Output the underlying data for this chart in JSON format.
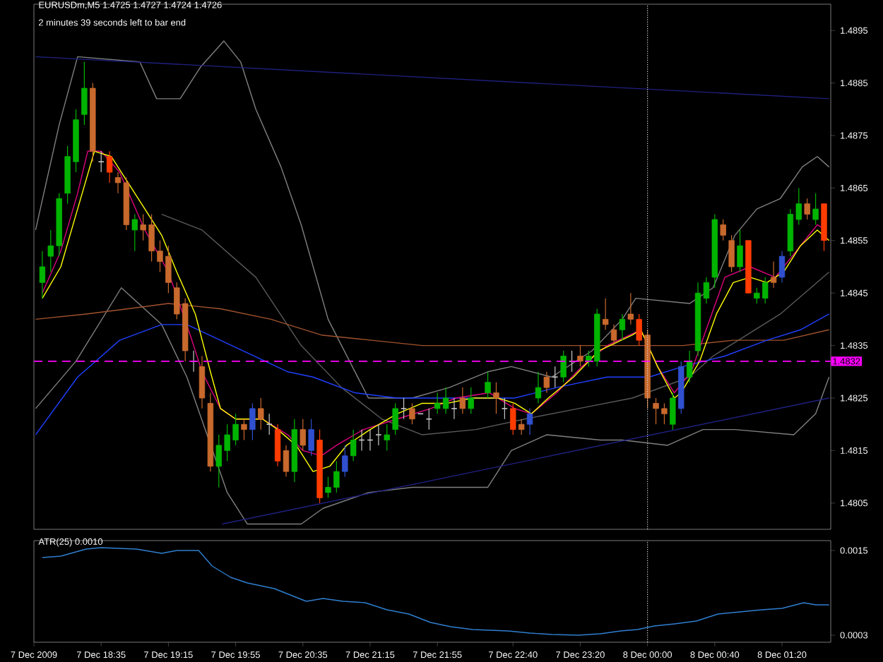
{
  "chart_data": [
    {
      "type": "candlestick",
      "title": "EURUSDm,M5  1.4725 1.4727 1.4724 1.4726",
      "subtitle": "2 minutes 39 seconds left to bar end",
      "x": [
        "2009-12-07T18:00",
        "2009-12-07T18:05",
        "2009-12-07T18:10",
        "2009-12-07T18:15",
        "2009-12-07T18:20",
        "2009-12-07T18:25",
        "2009-12-07T18:30",
        "2009-12-07T18:35",
        "2009-12-07T18:40",
        "2009-12-07T18:45",
        "2009-12-07T18:50",
        "2009-12-07T18:55",
        "2009-12-07T19:00",
        "2009-12-07T19:05",
        "2009-12-07T19:10",
        "2009-12-07T19:15",
        "2009-12-07T19:20",
        "2009-12-07T19:25",
        "2009-12-07T19:30",
        "2009-12-07T19:35",
        "2009-12-07T19:40",
        "2009-12-07T19:45",
        "2009-12-07T19:50",
        "2009-12-07T19:55",
        "2009-12-07T20:00",
        "2009-12-07T20:05",
        "2009-12-07T20:10",
        "2009-12-07T20:15",
        "2009-12-07T20:20",
        "2009-12-07T20:25",
        "2009-12-07T20:30",
        "2009-12-07T20:35",
        "2009-12-07T20:40",
        "2009-12-07T20:45",
        "2009-12-07T20:50",
        "2009-12-07T20:55",
        "2009-12-07T21:00",
        "2009-12-07T21:05",
        "2009-12-07T21:10",
        "2009-12-07T21:15",
        "2009-12-07T21:20",
        "2009-12-07T21:25",
        "2009-12-07T21:30",
        "2009-12-07T21:35",
        "2009-12-07T21:40",
        "2009-12-07T21:45",
        "2009-12-07T21:50",
        "2009-12-07T21:55",
        "2009-12-07T22:00",
        "2009-12-07T22:05",
        "2009-12-07T22:10",
        "2009-12-07T22:15",
        "2009-12-07T22:25",
        "2009-12-07T22:30",
        "2009-12-07T22:35",
        "2009-12-07T22:40",
        "2009-12-07T22:45",
        "2009-12-07T22:50",
        "2009-12-07T22:55",
        "2009-12-07T23:00",
        "2009-12-07T23:05",
        "2009-12-07T23:10",
        "2009-12-07T23:15",
        "2009-12-07T23:20",
        "2009-12-07T23:25",
        "2009-12-07T23:30",
        "2009-12-07T23:35",
        "2009-12-07T23:40",
        "2009-12-07T23:45",
        "2009-12-07T23:50",
        "2009-12-07T23:55",
        "2009-12-08T00:00",
        "2009-12-08T00:05",
        "2009-12-08T00:10",
        "2009-12-08T00:15",
        "2009-12-08T00:20",
        "2009-12-08T00:25",
        "2009-12-08T00:30",
        "2009-12-08T00:35",
        "2009-12-08T00:40",
        "2009-12-08T00:45",
        "2009-12-08T00:50",
        "2009-12-08T00:55",
        "2009-12-08T01:00",
        "2009-12-08T01:05",
        "2009-12-08T01:10",
        "2009-12-08T01:15",
        "2009-12-08T01:20",
        "2009-12-08T01:25",
        "2009-12-08T01:30",
        "2009-12-08T01:35",
        "2009-12-08T01:40",
        "2009-12-08T01:45"
      ],
      "ohlc": [
        [
          1.4847,
          1.4853,
          1.4844,
          1.485
        ],
        [
          1.4852,
          1.4857,
          1.4849,
          1.4854
        ],
        [
          1.4854,
          1.4864,
          1.4852,
          1.4863
        ],
        [
          1.4864,
          1.4873,
          1.4862,
          1.4871
        ],
        [
          1.487,
          1.488,
          1.4868,
          1.4878
        ],
        [
          1.4879,
          1.4889,
          1.4877,
          1.4884
        ],
        [
          1.4884,
          1.4885,
          1.487,
          1.4872
        ],
        [
          1.487,
          1.4872,
          1.4868,
          1.487
        ],
        [
          1.4871,
          1.4872,
          1.4866,
          1.4868
        ],
        [
          1.4867,
          1.4868,
          1.4864,
          1.4866
        ],
        [
          1.4866,
          1.4867,
          1.4857,
          1.4858
        ],
        [
          1.4857,
          1.486,
          1.4853,
          1.4859
        ],
        [
          1.4858,
          1.486,
          1.4855,
          1.4857
        ],
        [
          1.4858,
          1.486,
          1.4851,
          1.4853
        ],
        [
          1.4853,
          1.4855,
          1.4849,
          1.4851
        ],
        [
          1.4852,
          1.4854,
          1.4845,
          1.4847
        ],
        [
          1.4846,
          1.4847,
          1.484,
          1.4841
        ],
        [
          1.4843,
          1.4844,
          1.4832,
          1.4834
        ],
        [
          1.4832,
          1.4834,
          1.483,
          1.4832
        ],
        [
          1.4831,
          1.4833,
          1.4823,
          1.4825
        ],
        [
          1.4824,
          1.4826,
          1.4811,
          1.4812
        ],
        [
          1.4812,
          1.4818,
          1.4808,
          1.4816
        ],
        [
          1.4815,
          1.482,
          1.4813,
          1.4818
        ],
        [
          1.4817,
          1.4822,
          1.4816,
          1.482
        ],
        [
          1.482,
          1.4821,
          1.4817,
          1.4819
        ],
        [
          1.4819,
          1.4824,
          1.4817,
          1.4823
        ],
        [
          1.4823,
          1.4825,
          1.4819,
          1.4821
        ],
        [
          1.482,
          1.4822,
          1.4818,
          1.482
        ],
        [
          1.4819,
          1.482,
          1.4812,
          1.4813
        ],
        [
          1.4815,
          1.4816,
          1.481,
          1.4811
        ],
        [
          1.4811,
          1.4821,
          1.4809,
          1.4819
        ],
        [
          1.4819,
          1.4821,
          1.4815,
          1.4816
        ],
        [
          1.4815,
          1.4821,
          1.4814,
          1.4819
        ],
        [
          1.4817,
          1.4819,
          1.4805,
          1.4806
        ],
        [
          1.4807,
          1.481,
          1.4806,
          1.4808
        ],
        [
          1.4808,
          1.4813,
          1.4807,
          1.4811
        ],
        [
          1.4811,
          1.4816,
          1.481,
          1.4814
        ],
        [
          1.4814,
          1.4819,
          1.4813,
          1.4817
        ],
        [
          1.4817,
          1.4819,
          1.4815,
          1.4817
        ],
        [
          1.4817,
          1.4819,
          1.4815,
          1.4817
        ],
        [
          1.4818,
          1.482,
          1.4816,
          1.4818
        ],
        [
          1.4817,
          1.482,
          1.4815,
          1.4818
        ],
        [
          1.4819,
          1.4824,
          1.4818,
          1.4823
        ],
        [
          1.4823,
          1.4825,
          1.4821,
          1.4823
        ],
        [
          1.4823,
          1.4824,
          1.482,
          1.4821
        ],
        [
          1.4822,
          1.4822,
          1.4822,
          1.4822
        ],
        [
          1.4821,
          1.4823,
          1.4819,
          1.4821
        ],
        [
          1.4823,
          1.4826,
          1.4822,
          1.4824
        ],
        [
          1.4823,
          1.4827,
          1.4822,
          1.4825
        ],
        [
          1.4823,
          1.4825,
          1.4821,
          1.4823
        ],
        [
          1.4825,
          1.4827,
          1.4822,
          1.4823
        ],
        [
          1.4823,
          1.4827,
          1.4822,
          1.4825
        ],
        [
          1.4826,
          1.483,
          1.4825,
          1.4828
        ],
        [
          1.4826,
          1.4828,
          1.4822,
          1.4825
        ],
        [
          1.4823,
          1.4825,
          1.4821,
          1.4823
        ],
        [
          1.4823,
          1.4824,
          1.4818,
          1.4819
        ],
        [
          1.482,
          1.4821,
          1.4818,
          1.4819
        ],
        [
          1.482,
          1.4823,
          1.4818,
          1.4822
        ],
        [
          1.4825,
          1.483,
          1.4824,
          1.4827
        ],
        [
          1.4829,
          1.483,
          1.4826,
          1.4827
        ],
        [
          1.4829,
          1.4831,
          1.4827,
          1.4829
        ],
        [
          1.4829,
          1.4834,
          1.4828,
          1.4833
        ],
        [
          1.4832,
          1.4834,
          1.483,
          1.4832
        ],
        [
          1.4833,
          1.4835,
          1.4831,
          1.4832
        ],
        [
          1.4832,
          1.4834,
          1.4831,
          1.4833
        ],
        [
          1.4832,
          1.4842,
          1.4831,
          1.4841
        ],
        [
          1.484,
          1.4844,
          1.4838,
          1.4839
        ],
        [
          1.4838,
          1.4839,
          1.4835,
          1.4836
        ],
        [
          1.4838,
          1.4841,
          1.4836,
          1.484
        ],
        [
          1.4841,
          1.4845,
          1.4839,
          1.484
        ],
        [
          1.484,
          1.4841,
          1.4835,
          1.4836
        ],
        [
          1.4837,
          1.4838,
          1.4823,
          1.4825
        ],
        [
          1.4824,
          1.4825,
          1.482,
          1.4823
        ],
        [
          1.4823,
          1.4824,
          1.482,
          1.4822
        ],
        [
          1.482,
          1.4826,
          1.4819,
          1.4825
        ],
        [
          1.4823,
          1.4832,
          1.4822,
          1.4831
        ],
        [
          1.4829,
          1.4834,
          1.4828,
          1.4832
        ],
        [
          1.4834,
          1.4847,
          1.4833,
          1.4845
        ],
        [
          1.4844,
          1.4848,
          1.4843,
          1.4847
        ],
        [
          1.4848,
          1.486,
          1.4846,
          1.4859
        ],
        [
          1.4858,
          1.4859,
          1.4855,
          1.4856
        ],
        [
          1.4855,
          1.4856,
          1.4849,
          1.485
        ],
        [
          1.485,
          1.4857,
          1.4849,
          1.4854
        ],
        [
          1.4855,
          1.4855,
          1.4845,
          1.4845
        ],
        [
          1.4844,
          1.4846,
          1.4843,
          1.4845
        ],
        [
          1.4844,
          1.4848,
          1.4843,
          1.4847
        ],
        [
          1.4848,
          1.4851,
          1.4846,
          1.4847
        ],
        [
          1.4848,
          1.4853,
          1.4847,
          1.4852
        ],
        [
          1.4853,
          1.4861,
          1.4852,
          1.486
        ],
        [
          1.4859,
          1.4865,
          1.4858,
          1.4862
        ],
        [
          1.4862,
          1.4863,
          1.4859,
          1.486
        ],
        [
          1.4859,
          1.4864,
          1.4858,
          1.4861
        ],
        [
          1.4862,
          1.4862,
          1.4853,
          1.4855
        ]
      ],
      "colors": [
        "#00b400",
        "#00b400",
        "#00b400",
        "#00b400",
        "#00b400",
        "#00b400",
        "#c8692d",
        "#c8c8c8",
        "#ff3c00",
        "#c8692d",
        "#c8692d",
        "#00b400",
        "#c8692d",
        "#c8692d",
        "#c8692d",
        "#c8692d",
        "#c8692d",
        "#c8692d",
        "#c8c8c8",
        "#c8692d",
        "#c8692d",
        "#00b400",
        "#00b400",
        "#00b400",
        "#c8692d",
        "#3050d0",
        "#c8692d",
        "#c8c8c8",
        "#ff3c00",
        "#c8692d",
        "#00b400",
        "#c8692d",
        "#3050d0",
        "#ff3c00",
        "#00b400",
        "#00b400",
        "#3050d0",
        "#00b400",
        "#c8c8c8",
        "#c8c8c8",
        "#c8c8c8",
        "#00b400",
        "#00b400",
        "#c8c8c8",
        "#c8692d",
        "#c8c8c8",
        "#c8c8c8",
        "#00b400",
        "#00b400",
        "#c8c8c8",
        "#c8692d",
        "#00b400",
        "#00b400",
        "#c8692d",
        "#c8c8c8",
        "#ff3c00",
        "#c8692d",
        "#3050d0",
        "#00b400",
        "#c8692d",
        "#c8c8c8",
        "#00b400",
        "#c8c8c8",
        "#c8692d",
        "#00b400",
        "#00b400",
        "#c8692d",
        "#c8692d",
        "#00b400",
        "#c8692d",
        "#ff3c00",
        "#c8692d",
        "#c8692d",
        "#c8692d",
        "#00b400",
        "#3050d0",
        "#00b400",
        "#00b400",
        "#00b400",
        "#00b400",
        "#c8692d",
        "#c8692d",
        "#00b400",
        "#ff3c00",
        "#00b400",
        "#00b400",
        "#c8692d",
        "#3050d0",
        "#00b400",
        "#00b400",
        "#c8692d",
        "#00b400",
        "#ff3c00"
      ],
      "series": [
        {
          "type": "line",
          "color": "#808080",
          "x": [
            "2009-12-07T17:56",
            "2009-12-07T18:10",
            "2009-12-07T18:21",
            "2009-12-07T18:30",
            "2009-12-07T18:38",
            "2009-12-07T18:47",
            "2009-12-07T18:58",
            "2009-12-07T19:08",
            "2009-12-07T19:22",
            "2009-12-07T19:34",
            "2009-12-07T19:48",
            "2009-12-07T19:58",
            "2009-12-07T20:07",
            "2009-12-07T20:22",
            "2009-12-07T20:34",
            "2009-12-07T20:50",
            "2009-12-07T21:14",
            "2009-12-07T21:40",
            "2009-12-07T22:02",
            "2009-12-07T22:25",
            "2009-12-07T22:39",
            "2009-12-07T23:03",
            "2009-12-07T23:27",
            "2009-12-07T23:45",
            "2009-12-07T23:53",
            "2009-12-08T00:25",
            "2009-12-08T00:39",
            "2009-12-08T00:52",
            "2009-12-08T01:05",
            "2009-12-08T01:19",
            "2009-12-08T01:32",
            "2009-12-08T01:41",
            "2009-12-08T01:48"
          ],
          "values": [
            1.4857,
            1.4877,
            1.489,
            null,
            null,
            null,
            1.4889,
            1.4882,
            1.4882,
            1.4888,
            1.4893,
            1.4889,
            1.488,
            1.4869,
            1.4858,
            1.484,
            1.4825,
            1.4825,
            1.4827,
            1.483,
            1.4831,
            1.4829,
            1.4834,
            1.484,
            1.4844,
            1.4843,
            1.4846,
            1.4856,
            1.4861,
            1.4863,
            1.4869,
            1.4871,
            1.4869
          ]
        },
        {
          "type": "line",
          "color": "#808080",
          "x": [
            "2009-12-07T17:56",
            "2009-12-07T18:20",
            "2009-12-07T18:47",
            "2009-12-07T19:11",
            "2009-12-07T19:26",
            "2009-12-07T19:38",
            "2009-12-07T19:50",
            "2009-12-07T20:02",
            "2009-12-07T20:34",
            "2009-12-07T20:47",
            "2009-12-07T21:14",
            "2009-12-07T21:40",
            "2009-12-07T22:25",
            "2009-12-07T22:39",
            "2009-12-07T23:00",
            "2009-12-07T23:32",
            "2009-12-07T23:45",
            "2009-12-08T00:12",
            "2009-12-08T00:33",
            "2009-12-08T00:52",
            "2009-12-08T01:27",
            "2009-12-08T01:40",
            "2009-12-08T01:48"
          ],
          "values": [
            1.4823,
            1.4832,
            1.4846,
            1.4839,
            1.4829,
            1.4818,
            1.4807,
            1.4801,
            1.4801,
            1.4804,
            1.4807,
            1.4808,
            1.4808,
            1.4815,
            1.4818,
            1.4817,
            1.4817,
            1.4816,
            1.4819,
            1.4819,
            1.4818,
            1.4822,
            1.4829
          ]
        },
        {
          "type": "line",
          "color": "#5a5a5a",
          "x": [
            "2009-12-07T19:11",
            "2009-12-07T19:35",
            "2009-12-07T20:07",
            "2009-12-07T20:34",
            "2009-12-07T20:58",
            "2009-12-07T21:22",
            "2009-12-07T21:46",
            "2009-12-07T22:18",
            "2009-12-07T22:47",
            "2009-12-07T23:19",
            "2009-12-07T23:51",
            "2009-12-08T00:25",
            "2009-12-08T00:39",
            "2009-12-08T01:19",
            "2009-12-08T01:48"
          ],
          "values": [
            1.486,
            1.4857,
            1.4848,
            1.4835,
            1.4827,
            1.4821,
            1.4818,
            1.4819,
            1.4821,
            1.4823,
            1.4825,
            1.4829,
            1.4833,
            1.4841,
            1.4849
          ]
        },
        {
          "type": "line",
          "color": "#202080",
          "x": [
            "2009-12-07T17:56",
            "2009-12-08T01:48"
          ],
          "values": [
            1.489,
            1.4882
          ]
        },
        {
          "type": "line",
          "color": "#202080",
          "x": [
            "2009-12-07T19:47",
            "2009-12-08T01:48"
          ],
          "values": [
            1.4801,
            1.4825
          ]
        },
        {
          "type": "line",
          "color": "#a0522d",
          "x": [
            "2009-12-07T17:56",
            "2009-12-07T18:26",
            "2009-12-07T18:51",
            "2009-12-07T19:15",
            "2009-12-07T19:46",
            "2009-12-07T20:16",
            "2009-12-07T20:46",
            "2009-12-07T21:16",
            "2009-12-07T21:46",
            "2009-12-07T22:16",
            "2009-12-07T22:51",
            "2009-12-07T23:21",
            "2009-12-07T23:51",
            "2009-12-08T00:21",
            "2009-12-08T00:51",
            "2009-12-08T01:21",
            "2009-12-08T01:48"
          ],
          "values": [
            1.484,
            1.4841,
            1.4842,
            1.4843,
            1.4842,
            1.484,
            1.4837,
            1.4836,
            1.4835,
            1.4835,
            1.4835,
            1.4835,
            1.4835,
            1.4835,
            1.4836,
            1.4836,
            1.4838
          ]
        },
        {
          "type": "line",
          "color": "#2040ff",
          "x": [
            "2009-12-07T17:56",
            "2009-12-07T18:21",
            "2009-12-07T18:46",
            "2009-12-07T19:11",
            "2009-12-07T19:26",
            "2009-12-07T19:46",
            "2009-12-07T20:06",
            "2009-12-07T20:26",
            "2009-12-07T20:41",
            "2009-12-07T21:06",
            "2009-12-07T21:31",
            "2009-12-07T21:51",
            "2009-12-07T22:16",
            "2009-12-07T22:41",
            "2009-12-07T23:06",
            "2009-12-07T23:36",
            "2009-12-08T00:01",
            "2009-12-08T00:21",
            "2009-12-08T00:46",
            "2009-12-08T01:11",
            "2009-12-08T01:31",
            "2009-12-08T01:48"
          ],
          "values": [
            1.4818,
            1.4829,
            1.4836,
            1.4839,
            1.4839,
            1.4836,
            1.4833,
            1.483,
            1.4829,
            1.4826,
            1.4825,
            1.4825,
            1.4825,
            1.4825,
            1.4827,
            1.4829,
            1.4829,
            1.4831,
            1.4833,
            1.4836,
            1.4838,
            1.4841
          ]
        },
        {
          "type": "line",
          "color": "#e0007f",
          "x": [
            "2009-12-07T18:00",
            "2009-12-07T18:11",
            "2009-12-07T18:21",
            "2009-12-07T18:27",
            "2009-12-07T18:35",
            "2009-12-07T18:46",
            "2009-12-07T19:01",
            "2009-12-07T19:15",
            "2009-12-07T19:28",
            "2009-12-07T19:35",
            "2009-12-07T19:46",
            "2009-12-07T19:55",
            "2009-12-07T20:11",
            "2009-12-07T20:26",
            "2009-12-07T20:35",
            "2009-12-07T20:46",
            "2009-12-07T20:55",
            "2009-12-07T21:11",
            "2009-12-07T21:31",
            "2009-12-07T21:51",
            "2009-12-07T22:06",
            "2009-12-07T22:26",
            "2009-12-07T22:41",
            "2009-12-07T22:51",
            "2009-12-07T23:06",
            "2009-12-07T23:21",
            "2009-12-07T23:36",
            "2009-12-07T23:56",
            "2009-12-08T00:06",
            "2009-12-08T00:16",
            "2009-12-08T00:26",
            "2009-12-08T00:36",
            "2009-12-08T00:46",
            "2009-12-08T01:01",
            "2009-12-08T01:16",
            "2009-12-08T01:26",
            "2009-12-08T01:41",
            "2009-12-08T01:46"
          ],
          "values": [
            1.4845,
            1.4853,
            1.4864,
            1.4872,
            1.4872,
            1.4868,
            1.4857,
            1.4849,
            1.4837,
            1.483,
            1.4823,
            1.4821,
            1.4821,
            1.4818,
            1.4815,
            1.4814,
            1.4816,
            1.4819,
            1.4821,
            1.4823,
            1.4825,
            1.4826,
            1.4823,
            1.4822,
            1.4826,
            1.4831,
            1.4835,
            1.4838,
            1.4831,
            1.4826,
            1.483,
            1.4839,
            1.4848,
            1.485,
            1.4848,
            1.4852,
            1.4858,
            1.4857
          ]
        },
        {
          "type": "line",
          "color": "#ffff00",
          "x": [
            "2009-12-07T18:00",
            "2009-12-07T18:11",
            "2009-12-07T18:21",
            "2009-12-07T18:31",
            "2009-12-07T18:41",
            "2009-12-07T18:51",
            "2009-12-07T19:01",
            "2009-12-07T19:11",
            "2009-12-07T19:20",
            "2009-12-07T19:31",
            "2009-12-07T19:40",
            "2009-12-07T19:46",
            "2009-12-07T19:55",
            "2009-12-07T20:11",
            "2009-12-07T20:20",
            "2009-12-07T20:31",
            "2009-12-07T20:41",
            "2009-12-07T20:51",
            "2009-12-07T21:01",
            "2009-12-07T21:15",
            "2009-12-07T21:31",
            "2009-12-07T21:46",
            "2009-12-07T22:01",
            "2009-12-07T22:16",
            "2009-12-07T22:31",
            "2009-12-07T22:41",
            "2009-12-07T22:51",
            "2009-12-07T23:01",
            "2009-12-07T23:16",
            "2009-12-07T23:31",
            "2009-12-07T23:51",
            "2009-12-07T23:56",
            "2009-12-08T00:06",
            "2009-12-08T00:16",
            "2009-12-08T00:20",
            "2009-12-08T00:31",
            "2009-12-08T00:41",
            "2009-12-08T00:51",
            "2009-12-08T01:01",
            "2009-12-08T01:11",
            "2009-12-08T01:21",
            "2009-12-08T01:31",
            "2009-12-08T01:41",
            "2009-12-08T01:48"
          ],
          "values": [
            1.4844,
            1.485,
            1.4861,
            1.4872,
            1.4871,
            1.4866,
            1.4861,
            1.4856,
            1.4849,
            1.4841,
            1.483,
            1.4823,
            1.4821,
            1.4821,
            1.4819,
            1.4816,
            1.4811,
            1.4812,
            1.4816,
            1.4819,
            1.4822,
            1.4824,
            1.4824,
            1.4825,
            1.4825,
            1.4824,
            1.4822,
            1.4825,
            1.4829,
            1.4834,
            1.4837,
            1.4838,
            1.4831,
            1.4825,
            1.4826,
            1.4832,
            1.4841,
            1.4847,
            1.4848,
            1.4847,
            1.4849,
            1.4854,
            1.4857,
            1.4855
          ]
        }
      ],
      "xlim": [
        "2009-12-07T17:55",
        "2009-12-08T01:49"
      ],
      "ylim": [
        1.48,
        1.49
      ],
      "yticks": [
        1.4805,
        1.4815,
        1.4825,
        1.4835,
        1.4845,
        1.4855,
        1.4865,
        1.4875,
        1.4885,
        1.4895
      ],
      "ref_lines": [
        {
          "axis": "y",
          "value": 1.4832,
          "label": "1.4832",
          "color": "#ff00ff",
          "line_style": "dashed"
        },
        {
          "axis": "x",
          "value": "2009-12-08T00:00",
          "color": "#e0e0e0",
          "line_style": "dotted"
        }
      ],
      "tick_labels": "y"
    },
    {
      "type": "line",
      "title": "ATR(25) 0.0010",
      "series": [
        {
          "color": "#2f7fd0",
          "x": [
            "2009-12-07T18:00",
            "2009-12-07T18:11",
            "2009-12-07T18:26",
            "2009-12-07T18:35",
            "2009-12-07T18:56",
            "2009-12-07T19:11",
            "2009-12-07T19:20",
            "2009-12-07T19:33",
            "2009-12-07T19:41",
            "2009-12-07T19:52",
            "2009-12-07T20:02",
            "2009-12-07T20:18",
            "2009-12-07T20:37",
            "2009-12-07T20:47",
            "2009-12-07T20:59",
            "2009-12-07T21:12",
            "2009-12-07T21:25",
            "2009-12-07T21:38",
            "2009-12-07T21:51",
            "2009-12-07T22:03",
            "2009-12-07T22:16",
            "2009-12-07T22:37",
            "2009-12-07T22:50",
            "2009-12-07T23:03",
            "2009-12-07T23:19",
            "2009-12-07T23:32",
            "2009-12-07T23:44",
            "2009-12-07T23:54",
            "2009-12-08T00:04",
            "2009-12-08T00:16",
            "2009-12-08T00:29",
            "2009-12-08T00:42",
            "2009-12-08T00:55",
            "2009-12-08T01:08",
            "2009-12-08T01:20",
            "2009-12-08T01:33",
            "2009-12-08T01:40",
            "2009-12-08T01:48"
          ],
          "values": [
            0.0014,
            0.00142,
            0.00152,
            0.00154,
            0.00152,
            0.00146,
            0.0015,
            0.0015,
            0.00128,
            0.00112,
            0.00104,
            0.00096,
            0.00078,
            0.00082,
            0.00078,
            0.00076,
            0.00066,
            0.0006,
            0.00048,
            0.00042,
            0.00038,
            0.00036,
            0.00033,
            0.00031,
            0.0003,
            0.00032,
            0.00036,
            0.00038,
            0.00043,
            0.00046,
            0.0005,
            0.0006,
            0.00063,
            0.00066,
            0.00068,
            0.00076,
            0.00073,
            0.00073
          ]
        }
      ],
      "xlim": [
        "2009-12-07T17:55",
        "2009-12-08T01:49"
      ],
      "ylim": [
        0.0002,
        0.00164
      ],
      "xticks": [
        {
          "value": "2009-12-07T17:55",
          "label": "7 Dec 2009"
        },
        {
          "value": "2009-12-07T18:35",
          "label": "7 Dec 18:35"
        },
        {
          "value": "2009-12-07T19:15",
          "label": "7 Dec 19:15"
        },
        {
          "value": "2009-12-07T19:55",
          "label": "7 Dec 19:55"
        },
        {
          "value": "2009-12-07T20:35",
          "label": "7 Dec 20:35"
        },
        {
          "value": "2009-12-07T21:15",
          "label": "7 Dec 21:15"
        },
        {
          "value": "2009-12-07T21:55",
          "label": "7 Dec 21:55"
        },
        {
          "value": "2009-12-07T22:40",
          "label": "7 Dec 22:40"
        },
        {
          "value": "2009-12-07T23:20",
          "label": "7 Dec 23:20"
        },
        {
          "value": "2009-12-08T00:00",
          "label": "8 Dec 00:00"
        },
        {
          "value": "2009-12-08T00:40",
          "label": "8 Dec 00:40"
        },
        {
          "value": "2009-12-08T01:20",
          "label": "8 Dec 01:20"
        }
      ],
      "yticks": [
        0.0015,
        0.0003
      ],
      "ref_lines": [
        {
          "axis": "x",
          "value": "2009-12-08T00:00",
          "color": "#e0e0e0",
          "line_style": "dotted"
        }
      ]
    }
  ]
}
